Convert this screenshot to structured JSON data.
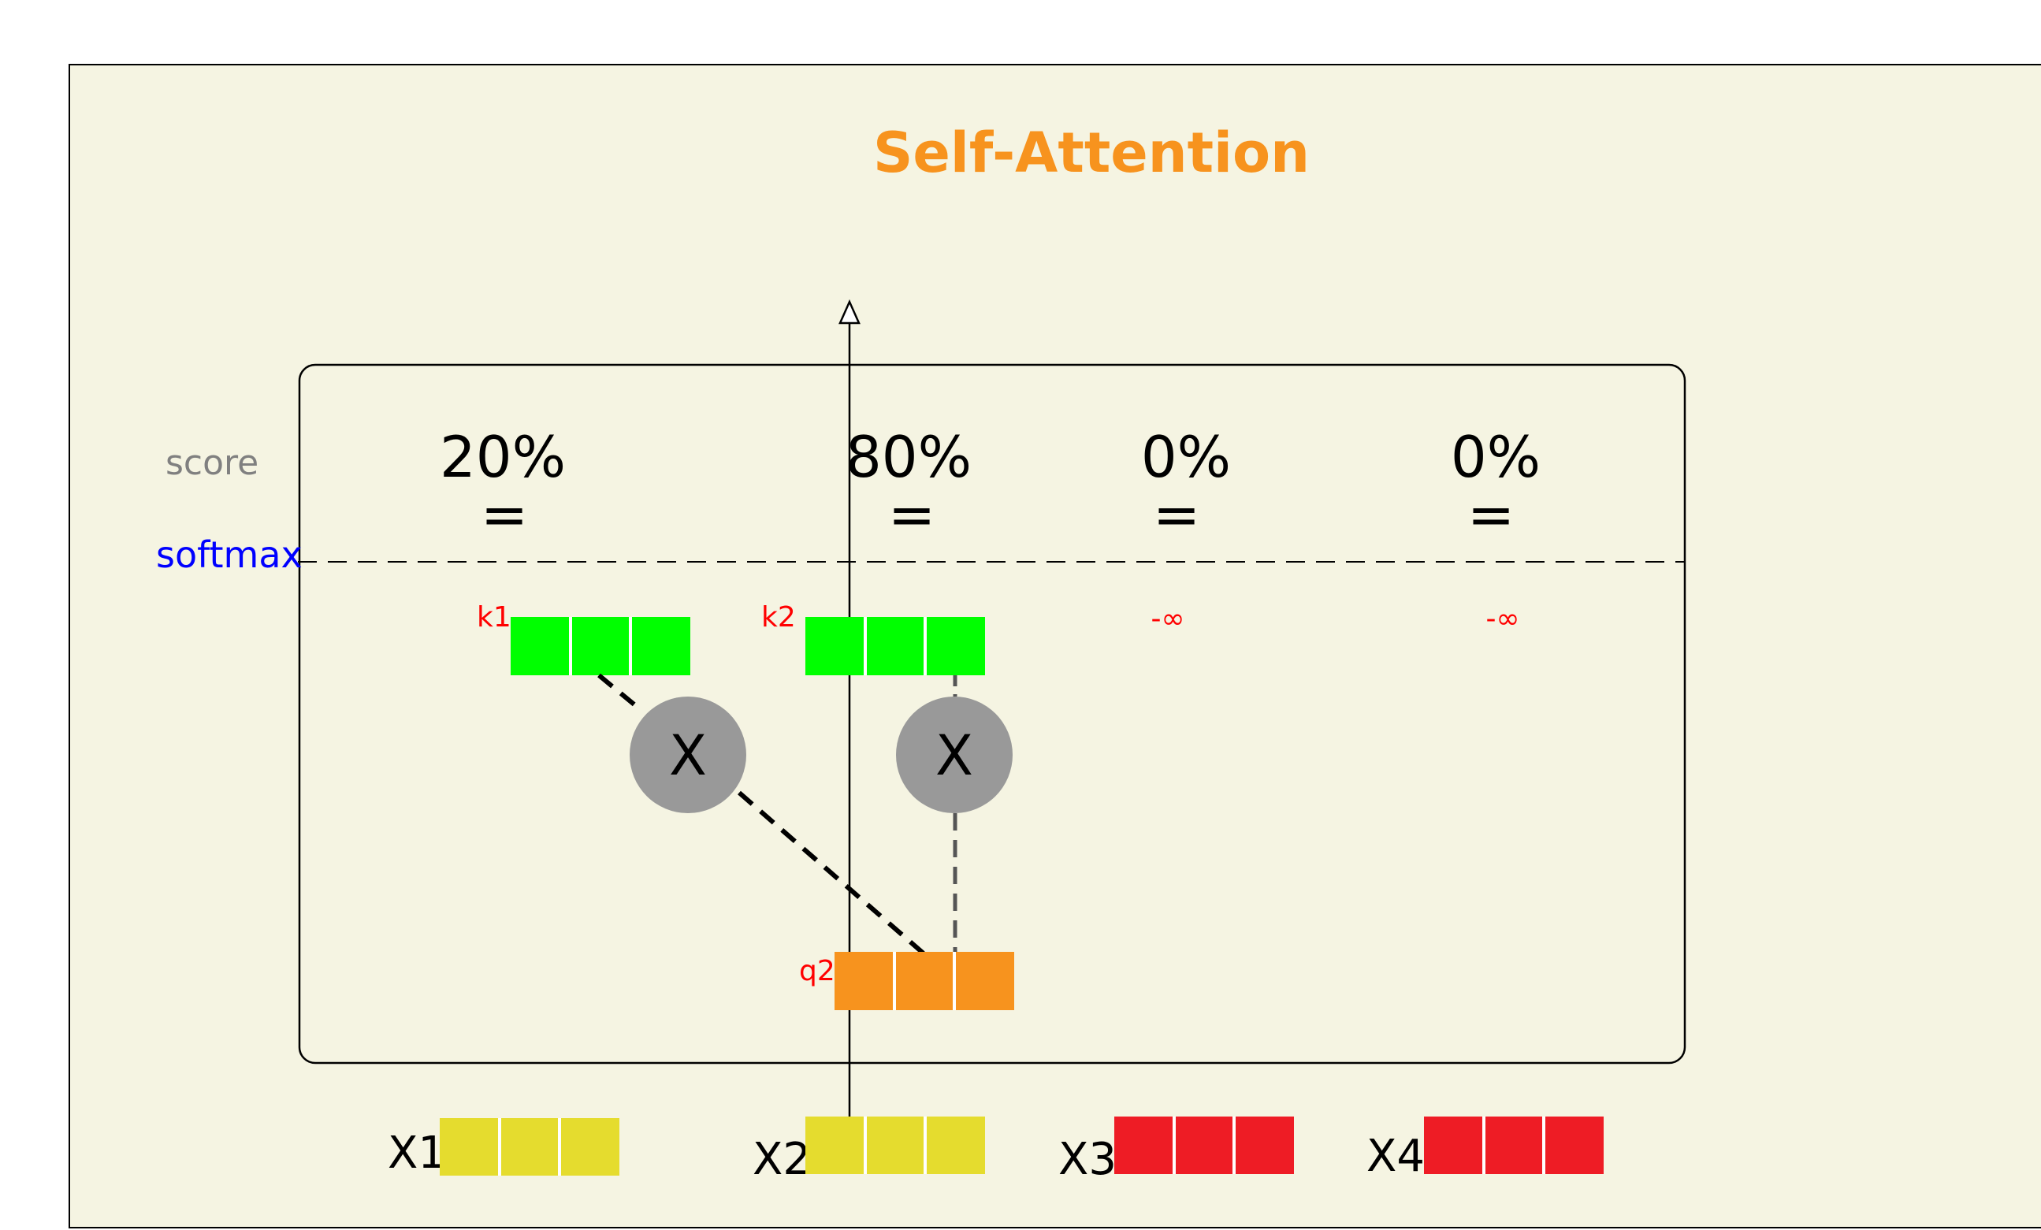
{
  "title": "Self-Attention",
  "side_labels": {
    "score": "score",
    "softmax": "softmax"
  },
  "scores": [
    "20%",
    "80%",
    "0%",
    "0%"
  ],
  "equals_sign": "=",
  "keys": {
    "k1": "k1",
    "k2": "k2"
  },
  "masked": [
    "-∞",
    "-∞"
  ],
  "multiply_symbol": "X",
  "query": "q2",
  "inputs": [
    "X1",
    "X2",
    "X3",
    "X4"
  ],
  "colors": {
    "panel_bg": "#f5f4e2",
    "title": "#f7931e",
    "key": "#00ff00",
    "query": "#f7931e",
    "input_yellow": "#e5dc2e",
    "input_red": "#ee1c25",
    "label_red": "#ff0000",
    "softmax_blue": "#0000ff",
    "score_gray": "#808080",
    "circle_gray": "#999999"
  }
}
